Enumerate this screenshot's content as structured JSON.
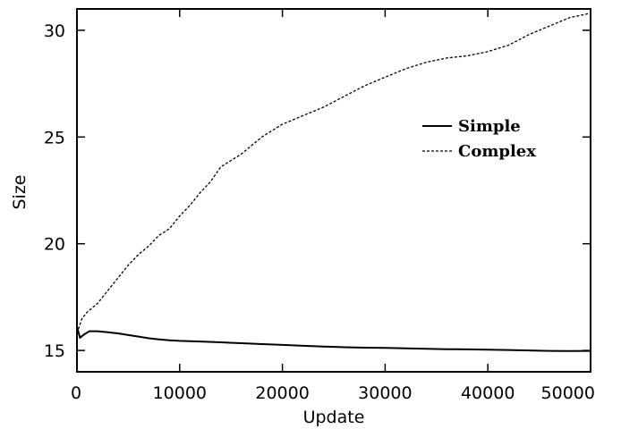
{
  "chart_data": {
    "type": "line",
    "xlabel": "Update",
    "ylabel": "Size",
    "xlim": [
      0,
      50000
    ],
    "ylim": [
      14,
      31
    ],
    "xticks": [
      0,
      10000,
      20000,
      30000,
      40000,
      50000
    ],
    "yticks": [
      15,
      20,
      25,
      30
    ],
    "grid": false,
    "legend_position": "top-right",
    "series": [
      {
        "name": "Simple",
        "style": "solid",
        "x": [
          0,
          300,
          700,
          1200,
          2000,
          3000,
          4000,
          5000,
          6000,
          7000,
          8000,
          9000,
          10000,
          12000,
          14000,
          16000,
          18000,
          20000,
          22000,
          24000,
          26000,
          28000,
          30000,
          32000,
          34000,
          36000,
          38000,
          40000,
          42000,
          44000,
          46000,
          48000,
          50000
        ],
        "values": [
          16.1,
          15.6,
          15.75,
          15.9,
          15.9,
          15.85,
          15.8,
          15.72,
          15.65,
          15.57,
          15.52,
          15.48,
          15.45,
          15.42,
          15.38,
          15.34,
          15.3,
          15.26,
          15.22,
          15.18,
          15.15,
          15.13,
          15.12,
          15.1,
          15.08,
          15.06,
          15.05,
          15.04,
          15.02,
          15.0,
          14.98,
          14.97,
          14.98
        ]
      },
      {
        "name": "Complex",
        "style": "dashed",
        "x": [
          0,
          500,
          1000,
          2000,
          3000,
          4000,
          5000,
          6000,
          7000,
          8000,
          9000,
          10000,
          11000,
          12000,
          13000,
          14000,
          15000,
          16000,
          17000,
          18000,
          19000,
          20000,
          22000,
          24000,
          26000,
          28000,
          30000,
          32000,
          34000,
          36000,
          38000,
          40000,
          42000,
          44000,
          46000,
          48000,
          50000
        ],
        "values": [
          15.8,
          16.5,
          16.8,
          17.2,
          17.8,
          18.4,
          19.0,
          19.5,
          19.9,
          20.4,
          20.7,
          21.3,
          21.8,
          22.4,
          22.9,
          23.6,
          23.9,
          24.2,
          24.6,
          25.0,
          25.3,
          25.6,
          26.0,
          26.4,
          26.9,
          27.4,
          27.8,
          28.2,
          28.5,
          28.7,
          28.8,
          29.0,
          29.3,
          29.8,
          30.2,
          30.6,
          30.8
        ]
      }
    ]
  }
}
